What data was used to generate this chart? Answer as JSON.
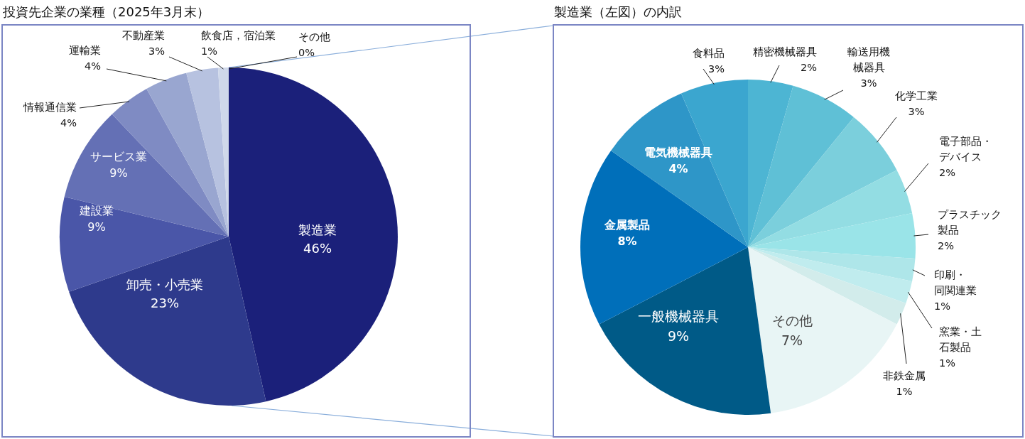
{
  "chart_data": [
    {
      "type": "pie",
      "title": "投資先企業の業種（2025年3月末）",
      "categories": [
        "製造業",
        "卸売・小売業",
        "建設業",
        "サービス業",
        "情報通信業",
        "運輸業",
        "不動産業",
        "飲食店，宿泊業",
        "その他"
      ],
      "values": [
        46,
        23,
        9,
        9,
        4,
        4,
        3,
        1,
        0
      ],
      "colors": [
        "#1b207a",
        "#2e3a8c",
        "#4a56a8",
        "#6470b5",
        "#7f8bc3",
        "#99a6d0",
        "#b7c2e0",
        "#cfd8ea",
        "#e6edf5"
      ],
      "value_labels": [
        "46%",
        "23%",
        "9%",
        "9%",
        "4%",
        "4%",
        "3%",
        "1%",
        "0%"
      ]
    },
    {
      "type": "pie",
      "title": "製造業（左図）の内訳",
      "categories": [
        "精密機械器具",
        "輸送用機械器具",
        "化学工業",
        "電子部品・デバイス",
        "プラスチック製品",
        "印刷・同関連業",
        "窯業・土石製品",
        "非鉄金属",
        "その他",
        "一般機械器具",
        "金属製品",
        "電気機械器具",
        "食料品"
      ],
      "values": [
        2,
        3,
        3,
        2,
        2,
        1,
        1,
        1,
        7,
        9,
        8,
        4,
        3
      ],
      "colors": [
        "#4db5d3",
        "#5fc0d6",
        "#7bcfdc",
        "#93dde3",
        "#9ae4e8",
        "#aee6e9",
        "#c0ecee",
        "#d2eceb",
        "#e8f5f5",
        "#005a87",
        "#006fba",
        "#2e96c8",
        "#3ba6cf"
      ],
      "value_labels": [
        "2%",
        "3%",
        "3%",
        "2%",
        "2%",
        "1%",
        "1%",
        "1%",
        "7%",
        "9%",
        "8%",
        "4%",
        "3%"
      ]
    }
  ]
}
